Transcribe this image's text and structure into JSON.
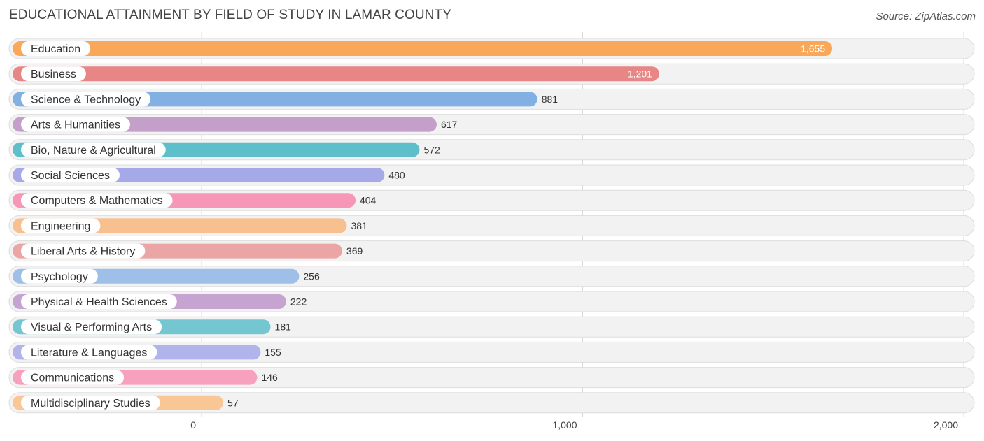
{
  "chart_data": {
    "type": "bar",
    "orientation": "horizontal",
    "title": "EDUCATIONAL ATTAINMENT BY FIELD OF STUDY IN LAMAR COUNTY",
    "source": "Source: ZipAtlas.com",
    "categories": [
      "Education",
      "Business",
      "Science & Technology",
      "Arts & Humanities",
      "Bio, Nature & Agricultural",
      "Social Sciences",
      "Computers & Mathematics",
      "Engineering",
      "Liberal Arts & History",
      "Psychology",
      "Physical & Health Sciences",
      "Visual & Performing Arts",
      "Literature & Languages",
      "Communications",
      "Multidisciplinary Studies"
    ],
    "values": [
      1655,
      1201,
      881,
      617,
      572,
      480,
      404,
      381,
      369,
      256,
      222,
      181,
      155,
      146,
      57
    ],
    "value_labels": [
      "1,655",
      "1,201",
      "881",
      "617",
      "572",
      "480",
      "404",
      "381",
      "369",
      "256",
      "222",
      "181",
      "155",
      "146",
      "57"
    ],
    "colors": [
      "#f9a85a",
      "#e88585",
      "#82b0e3",
      "#c49fc9",
      "#5dbfc9",
      "#a5a9e8",
      "#f797b7",
      "#f9c08f",
      "#eba5a5",
      "#9ec0e8",
      "#c6a4d1",
      "#74c7d0",
      "#b1b4ea",
      "#f7a1bf",
      "#f9c695"
    ],
    "xlim": [
      0,
      2000
    ],
    "xticks": [
      0,
      1000,
      2000
    ],
    "xtick_labels": [
      "0",
      "1,000",
      "2,000"
    ],
    "grid": true
  }
}
